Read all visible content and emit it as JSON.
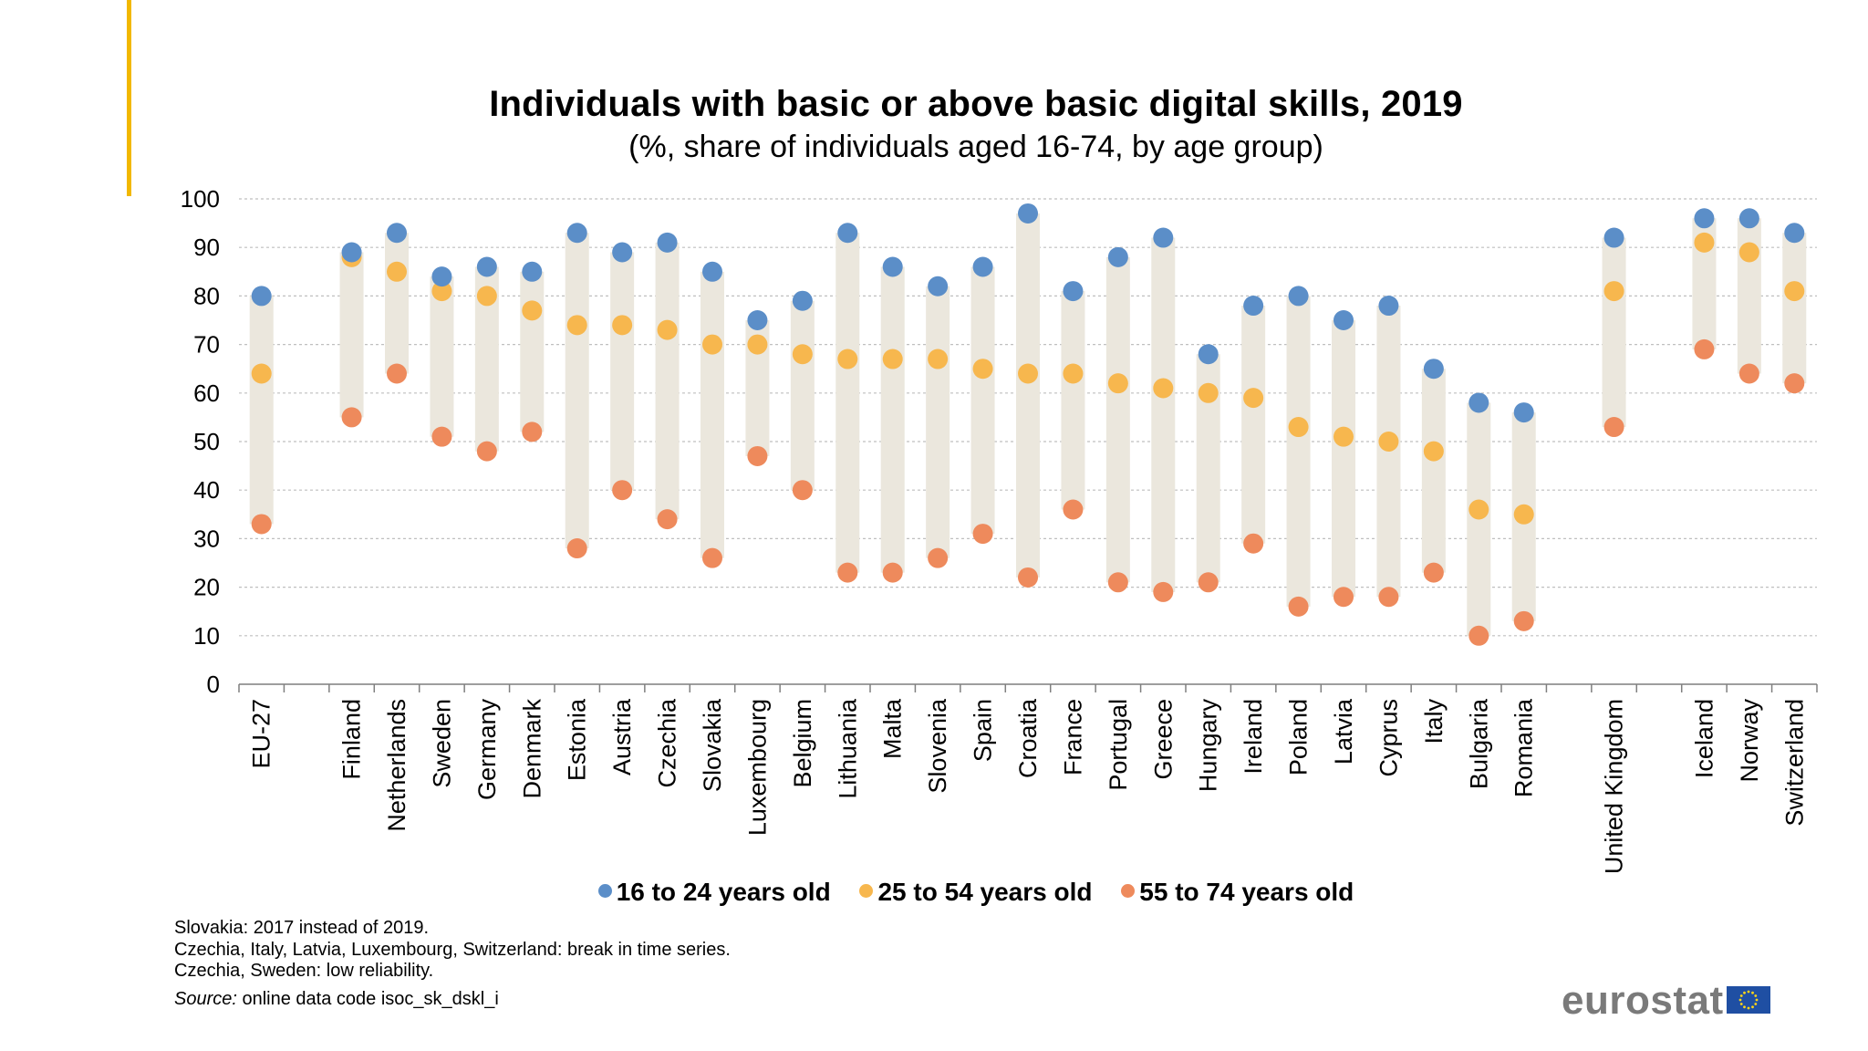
{
  "title": "Individuals with basic or above basic digital skills, 2019",
  "subtitle": "(%, share of individuals aged 16-74, by age group)",
  "colors": {
    "accent": "#f2b800",
    "series_16_24": "#5b8ec8",
    "series_25_54": "#f7b74e",
    "series_55_74": "#ee8a5c",
    "range_bar": "#ebe7dd",
    "gridline": "#bfbfbf",
    "brand_text": "#7a7a7a",
    "eu_flag": "#1f4fa3",
    "eu_stars": "#ffd617"
  },
  "chart_data": {
    "type": "scatter",
    "title": "Individuals with basic or above basic digital skills, 2019",
    "subtitle": "(%, share of individuals aged 16-74, by age group)",
    "xlabel": "",
    "ylabel": "",
    "ylim": [
      0,
      100
    ],
    "yticks": [
      "0",
      "10",
      "20",
      "30",
      "40",
      "50",
      "60",
      "70",
      "80",
      "90",
      "100"
    ],
    "grid": true,
    "legend_position": "bottom",
    "categories": [
      "EU-27",
      "",
      "Finland",
      "Netherlands",
      "Sweden",
      "Germany",
      "Denmark",
      "Estonia",
      "Austria",
      "Czechia",
      "Slovakia",
      "Luxembourg",
      "Belgium",
      "Lithuania",
      "Malta",
      "Slovenia",
      "Spain",
      "Croatia",
      "France",
      "Portugal",
      "Greece",
      "Hungary",
      "Ireland",
      "Poland",
      "Latvia",
      "Cyprus",
      "Italy",
      "Bulgaria",
      "Romania",
      "",
      "United Kingdom",
      "",
      "Iceland",
      "Norway",
      "Switzerland"
    ],
    "series": [
      {
        "name": "16 to 24 years old",
        "color": "#5b8ec8",
        "values": [
          80,
          null,
          89,
          93,
          84,
          86,
          85,
          93,
          89,
          91,
          85,
          75,
          79,
          93,
          86,
          82,
          86,
          97,
          81,
          88,
          92,
          68,
          78,
          80,
          75,
          78,
          65,
          58,
          56,
          null,
          92,
          null,
          96,
          96,
          93
        ]
      },
      {
        "name": "25 to 54 years old",
        "color": "#f7b74e",
        "values": [
          64,
          null,
          88,
          85,
          81,
          80,
          77,
          74,
          74,
          73,
          70,
          70,
          68,
          67,
          67,
          67,
          65,
          64,
          64,
          62,
          61,
          60,
          59,
          53,
          51,
          50,
          48,
          36,
          35,
          null,
          81,
          null,
          91,
          89,
          81
        ]
      },
      {
        "name": "55 to 74 years old",
        "color": "#ee8a5c",
        "values": [
          33,
          null,
          55,
          64,
          51,
          48,
          52,
          28,
          40,
          34,
          26,
          47,
          40,
          23,
          23,
          26,
          31,
          22,
          36,
          21,
          19,
          21,
          29,
          16,
          18,
          18,
          23,
          10,
          13,
          null,
          53,
          null,
          69,
          64,
          62
        ]
      }
    ]
  },
  "legend": [
    {
      "label": "16 to 24 years old",
      "color": "#5b8ec8"
    },
    {
      "label": "25 to 54 years old",
      "color": "#f7b74e"
    },
    {
      "label": "55 to 74 years old",
      "color": "#ee8a5c"
    }
  ],
  "notes": [
    "Slovakia: 2017 instead of 2019.",
    "Czechia, Italy, Latvia, Luxembourg, Switzerland: break in time series.",
    "Czechia, Sweden: low reliability."
  ],
  "source": {
    "label": "Source:",
    "text": " online data code isoc_sk_dskl_i"
  },
  "brand": "eurostat"
}
